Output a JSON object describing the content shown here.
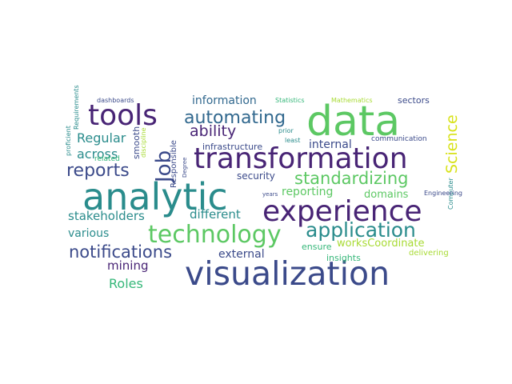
{
  "palette": {
    "navy": "#3b4a8a",
    "teal": "#2a8c8c",
    "green": "#5cc863",
    "lime": "#a8db34",
    "purple": "#482475",
    "yellow": "#d8e219",
    "blue": "#31688e",
    "mint": "#35b779"
  },
  "words": [
    {
      "text": "data",
      "color": "#5cc863"
    },
    {
      "text": "tools",
      "color": "#482475"
    },
    {
      "text": "automating",
      "color": "#31688e"
    },
    {
      "text": "Job",
      "color": "#3b4a8a"
    },
    {
      "text": "transformation",
      "color": "#482475"
    },
    {
      "text": "ability",
      "color": "#482475"
    },
    {
      "text": "information",
      "color": "#31688e"
    },
    {
      "text": "Science",
      "color": "#d8e219"
    },
    {
      "text": "reports",
      "color": "#3b4a8a"
    },
    {
      "text": "standardizing",
      "color": "#5cc863"
    },
    {
      "text": "analytic",
      "color": "#2a8c8c"
    },
    {
      "text": "experience",
      "color": "#482475"
    },
    {
      "text": "technology",
      "color": "#5cc863"
    },
    {
      "text": "application",
      "color": "#2a8c8c"
    },
    {
      "text": "visualization",
      "color": "#3b4a8a"
    },
    {
      "text": "notifications",
      "color": "#3b4a8a"
    },
    {
      "text": "Regular",
      "color": "#2a8c8c"
    },
    {
      "text": "across",
      "color": "#2a8c8c"
    },
    {
      "text": "stakeholders",
      "color": "#2a8c8c"
    },
    {
      "text": "different",
      "color": "#2a8c8c"
    },
    {
      "text": "various",
      "color": "#2a8c8c"
    },
    {
      "text": "mining",
      "color": "#482475"
    },
    {
      "text": "Roles",
      "color": "#35b779"
    },
    {
      "text": "external",
      "color": "#3b4a8a"
    },
    {
      "text": "reporting",
      "color": "#5cc863"
    },
    {
      "text": "domains",
      "color": "#5cc863"
    },
    {
      "text": "internal",
      "color": "#3b4a8a"
    },
    {
      "text": "infrastructure",
      "color": "#3b4a8a"
    },
    {
      "text": "security",
      "color": "#3b4a8a"
    },
    {
      "text": "sectors",
      "color": "#3b4a8a"
    },
    {
      "text": "worksCoordinate",
      "color": "#a8db34"
    },
    {
      "text": "ensure",
      "color": "#35b779"
    },
    {
      "text": "insights",
      "color": "#35b779"
    },
    {
      "text": "delivering",
      "color": "#a8db34"
    },
    {
      "text": "communication",
      "color": "#3b4a8a"
    },
    {
      "text": "smooth",
      "color": "#3b4a8a"
    },
    {
      "text": "Responsible",
      "color": "#3b4a8a"
    },
    {
      "text": "Requirements",
      "color": "#2a8c8c"
    },
    {
      "text": "proficient",
      "color": "#2a8c8c"
    },
    {
      "text": "discipline",
      "color": "#a8db34"
    },
    {
      "text": "Degree",
      "color": "#3b4a8a"
    },
    {
      "text": "Computer",
      "color": "#2a8c8c"
    },
    {
      "text": "Statistics",
      "color": "#35b779"
    },
    {
      "text": "Mathematics",
      "color": "#a8db34"
    },
    {
      "text": "dashboards",
      "color": "#3b4a8a"
    },
    {
      "text": "related",
      "color": "#35b779"
    },
    {
      "text": "prior",
      "color": "#2a8c8c"
    },
    {
      "text": "least",
      "color": "#2a8c8c"
    },
    {
      "text": "years",
      "color": "#3b4a8a"
    },
    {
      "text": "Engineering",
      "color": "#3b4a8a"
    }
  ]
}
